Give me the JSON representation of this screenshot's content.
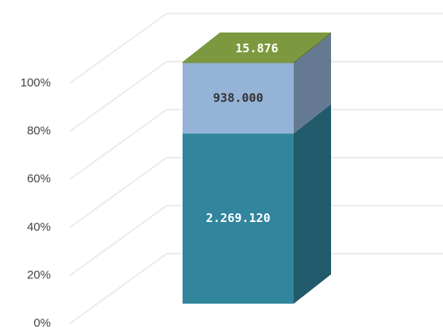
{
  "chart_data": {
    "type": "bar3d",
    "stacking": "percent",
    "series": [
      {
        "color": "#31859c",
        "values": [
          2269120
        ],
        "value_labels": [
          "2.269.120"
        ]
      },
      {
        "color": "#95b3d7",
        "values": [
          938000
        ],
        "value_labels": [
          "938.000"
        ]
      },
      {
        "color": "#76923c",
        "values": [
          15876
        ],
        "value_labels": [
          "15.876"
        ]
      }
    ],
    "ylim": [
      0,
      100
    ],
    "yticks": [
      {
        "value": 0,
        "label": "0%"
      },
      {
        "value": 20,
        "label": "20%"
      },
      {
        "value": 40,
        "label": "40%"
      },
      {
        "value": 60,
        "label": "60%"
      },
      {
        "value": 80,
        "label": "80%"
      },
      {
        "value": 100,
        "label": "100%"
      }
    ],
    "grid": true
  }
}
